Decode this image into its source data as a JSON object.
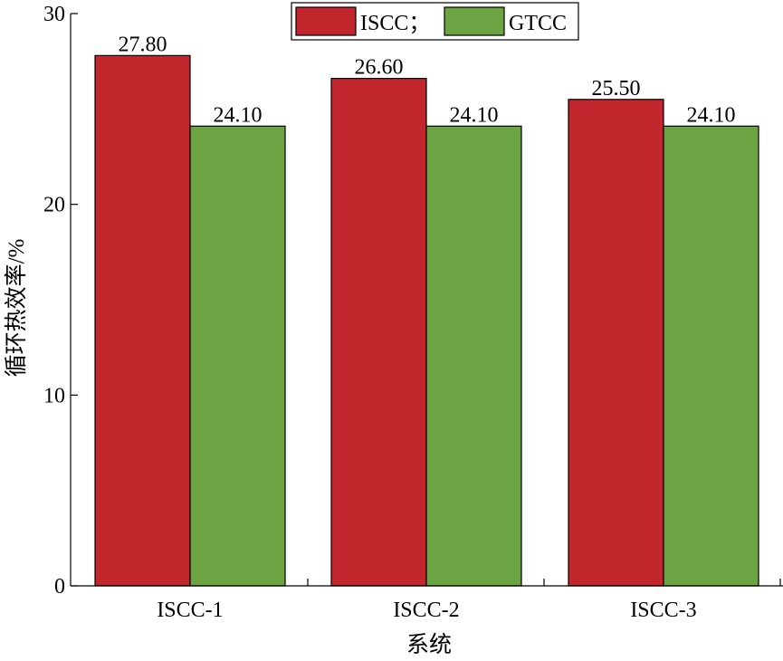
{
  "chart_data": {
    "type": "bar",
    "categories": [
      "ISCC-1",
      "ISCC-2",
      "ISCC-3"
    ],
    "series": [
      {
        "name": "ISCC；",
        "values": [
          27.8,
          26.6,
          25.5
        ],
        "color": "#c1272d"
      },
      {
        "name": "GTCC",
        "values": [
          24.1,
          24.1,
          24.1
        ],
        "color": "#6da443"
      }
    ],
    "data_labels": [
      [
        "27.80",
        "26.60",
        "25.50"
      ],
      [
        "24.10",
        "24.10",
        "24.10"
      ]
    ],
    "yticks": [
      "0",
      "10",
      "20",
      "30"
    ],
    "ylim": [
      0,
      30
    ],
    "xlabel": "系统",
    "ylabel": "循环热效率/%",
    "grid": false,
    "legend_position": "top-center"
  }
}
